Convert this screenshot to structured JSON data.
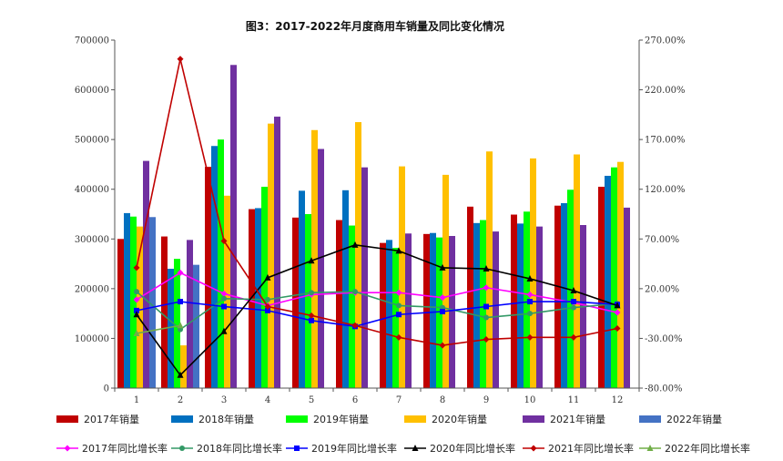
{
  "chart_data": {
    "type": "bar+line",
    "title": "图3：2017-2022年月度商用车销量及同比变化情况",
    "categories": [
      "1",
      "2",
      "3",
      "4",
      "5",
      "6",
      "7",
      "8",
      "9",
      "10",
      "11",
      "12"
    ],
    "ylim": [
      0,
      700000
    ],
    "y_ticks": [
      "0",
      "100000",
      "200000",
      "300000",
      "400000",
      "500000",
      "600000",
      "700000"
    ],
    "y2lim": [
      -80,
      270
    ],
    "y2_ticks": [
      "-80.00%",
      "-30.00%",
      "20.00%",
      "70.00%",
      "120.00%",
      "170.00%",
      "220.00%",
      "270.00%"
    ],
    "legend_position": "bottom",
    "bar_series": [
      {
        "name": "2017年销量",
        "color": "#c00000",
        "values": [
          300000,
          305000,
          445000,
          360000,
          343000,
          338000,
          292000,
          310000,
          365000,
          349000,
          367000,
          405000
        ]
      },
      {
        "name": "2018年销量",
        "color": "#0070c0",
        "values": [
          352000,
          240000,
          487000,
          362000,
          397000,
          398000,
          298000,
          312000,
          332000,
          331000,
          372000,
          427000
        ]
      },
      {
        "name": "2019年销量",
        "color": "#00ff00",
        "values": [
          345000,
          260000,
          500000,
          405000,
          350000,
          327000,
          282000,
          303000,
          338000,
          355000,
          399000,
          444000
        ]
      },
      {
        "name": "2020年销量",
        "color": "#ffc000",
        "values": [
          325000,
          86000,
          387000,
          532000,
          519000,
          535000,
          446000,
          429000,
          476000,
          462000,
          470000,
          455000
        ]
      },
      {
        "name": "2021年销量",
        "color": "#7030a0",
        "values": [
          457000,
          298000,
          650000,
          546000,
          481000,
          444000,
          311000,
          306000,
          315000,
          325000,
          328000,
          363000
        ]
      },
      {
        "name": "2022年销量",
        "color": "#4472c4",
        "values": [
          344000,
          248000,
          null,
          null,
          null,
          null,
          null,
          null,
          null,
          null,
          null,
          null
        ]
      }
    ],
    "line_series": [
      {
        "name": "2017年同比增长率",
        "color": "#ff00ff",
        "marker": "diamond",
        "values": [
          9,
          36,
          15,
          3,
          14,
          16,
          16,
          11,
          21,
          14,
          6,
          -4
        ]
      },
      {
        "name": "2018年同比增长率",
        "color": "#339966",
        "marker": "circle",
        "values": [
          17,
          -21,
          10,
          9,
          16,
          17,
          3,
          1,
          -9,
          -5,
          1,
          5
        ]
      },
      {
        "name": "2019年同比增长率",
        "color": "#0000ff",
        "marker": "square",
        "values": [
          -2,
          7,
          2,
          -2,
          -12,
          -18,
          -6,
          -3,
          2,
          7,
          7,
          4
        ]
      },
      {
        "name": "2020年同比增长率",
        "color": "#000000",
        "marker": "triangle",
        "values": [
          -6,
          -67,
          -23,
          31,
          48,
          64,
          58,
          41,
          40,
          30,
          18,
          3
        ]
      },
      {
        "name": "2021年同比增长率",
        "color": "#c00000",
        "marker": "diamond",
        "values": [
          41,
          251,
          68,
          2,
          -7,
          -17,
          -29,
          -37,
          -31,
          -29,
          -29,
          -20
        ]
      },
      {
        "name": "2022年同比增长率",
        "color": "#70ad47",
        "marker": "triangle",
        "values": [
          -25,
          -17,
          null,
          null,
          null,
          null,
          null,
          null,
          null,
          null,
          null,
          null
        ]
      }
    ]
  }
}
